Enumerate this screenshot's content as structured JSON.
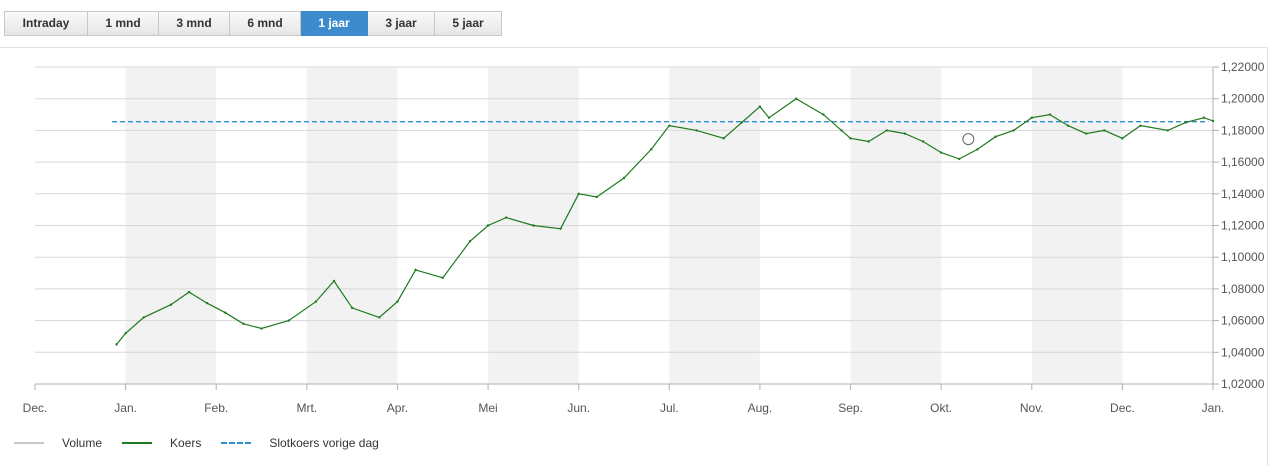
{
  "tabs": [
    {
      "label": "Intraday",
      "active": false
    },
    {
      "label": "1 mnd",
      "active": false
    },
    {
      "label": "3 mnd",
      "active": false
    },
    {
      "label": "6 mnd",
      "active": false
    },
    {
      "label": "1 jaar",
      "active": true
    },
    {
      "label": "3 jaar",
      "active": false
    },
    {
      "label": "5 jaar",
      "active": false
    }
  ],
  "legend": {
    "volume_label": "Volume",
    "koers_label": "Koers",
    "slotkoers_label": "Slotkoers vorige dag"
  },
  "colors": {
    "koers": "#1e7a1e",
    "slotkoers": "#2e90d0",
    "volume": "#c8c8c8",
    "active_tab": "#3d8bcd",
    "band": "#f2f2f2"
  },
  "chart_data": {
    "type": "line",
    "x_tick_labels": [
      "Dec.",
      "Jan.",
      "Feb.",
      "Mrt.",
      "Apr.",
      "Mei",
      "Jun.",
      "Jul.",
      "Aug.",
      "Sep.",
      "Okt.",
      "Nov.",
      "Dec.",
      "Jan."
    ],
    "y_tick_labels": [
      "1,22000",
      "1,20000",
      "1,18000",
      "1,16000",
      "1,14000",
      "1,12000",
      "1,10000",
      "1,08000",
      "1,06000",
      "1,04000",
      "1,02000"
    ],
    "ylim": [
      1.02,
      1.22
    ],
    "y_axis_position": "right",
    "grid": true,
    "legend_position": "bottom-left",
    "reference_line": {
      "name": "Slotkoers vorige dag",
      "value": 1.1855,
      "style": "dashed"
    },
    "marker": {
      "month": 10.3,
      "value": 1.1745
    },
    "series": [
      {
        "name": "Koers",
        "x": [
          0.9,
          1.0,
          1.2,
          1.5,
          1.7,
          1.9,
          2.1,
          2.3,
          2.5,
          2.8,
          3.1,
          3.3,
          3.5,
          3.8,
          4.0,
          4.2,
          4.5,
          4.8,
          5.0,
          5.2,
          5.5,
          5.8,
          6.0,
          6.2,
          6.5,
          6.8,
          7.0,
          7.3,
          7.6,
          7.8,
          8.0,
          8.1,
          8.4,
          8.7,
          8.9,
          9.0,
          9.2,
          9.4,
          9.6,
          9.8,
          10.0,
          10.2,
          10.4,
          10.6,
          10.8,
          11.0,
          11.2,
          11.4,
          11.6,
          11.8,
          12.0,
          12.2,
          12.5,
          12.7,
          12.9,
          13.0
        ],
        "y": [
          1.045,
          1.052,
          1.062,
          1.07,
          1.078,
          1.071,
          1.065,
          1.058,
          1.055,
          1.06,
          1.072,
          1.085,
          1.068,
          1.062,
          1.072,
          1.092,
          1.087,
          1.11,
          1.12,
          1.125,
          1.12,
          1.118,
          1.14,
          1.138,
          1.15,
          1.168,
          1.183,
          1.18,
          1.175,
          1.185,
          1.195,
          1.188,
          1.2,
          1.19,
          1.18,
          1.175,
          1.173,
          1.18,
          1.178,
          1.173,
          1.166,
          1.162,
          1.168,
          1.176,
          1.18,
          1.188,
          1.19,
          1.183,
          1.178,
          1.18,
          1.175,
          1.183,
          1.18,
          1.185,
          1.188,
          1.186
        ]
      }
    ]
  }
}
